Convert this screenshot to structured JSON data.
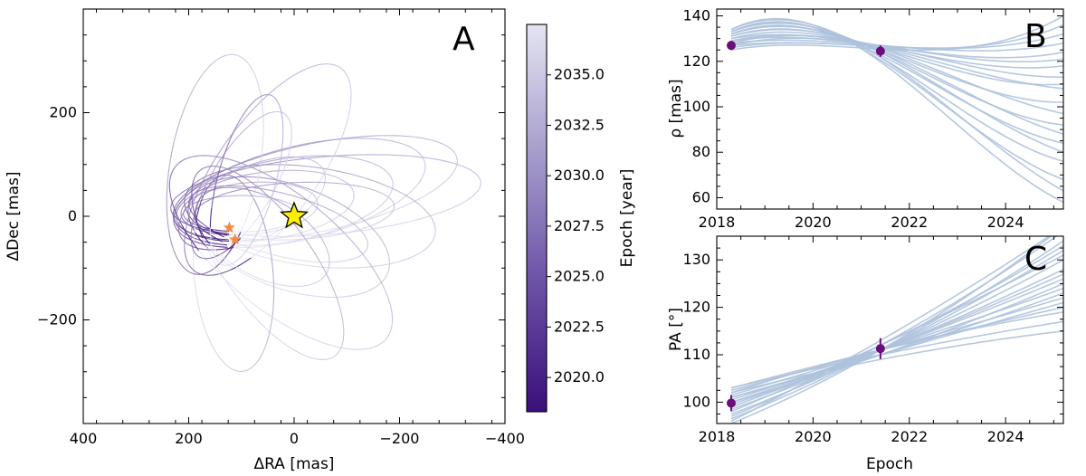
{
  "chart_data": [
    {
      "panel": "A",
      "type": "scatter",
      "xlabel": "ΔRA [mas]",
      "ylabel": "ΔDec [mas]",
      "xlim": [
        400,
        -400
      ],
      "ylim": [
        -400,
        400
      ],
      "xticks": [
        "400",
        "200",
        "0",
        "−200",
        "−400"
      ],
      "yticks": [
        "−200",
        "0",
        "200"
      ],
      "xtick_values": [
        400,
        200,
        0,
        -200,
        -400
      ],
      "ytick_values": [
        -200,
        0,
        200
      ],
      "star": {
        "x": 0,
        "y": 0,
        "color": "#ffee00",
        "edge": "#000000"
      },
      "observations": [
        {
          "x": 123,
          "y": -22,
          "color": "#f58a3c"
        },
        {
          "x": 112,
          "y": -45,
          "color": "#f58a3c"
        }
      ],
      "orbits": [
        {
          "cx": 100,
          "cy": 5,
          "a": 110,
          "b": 35,
          "tilt": 0
        },
        {
          "cx": 85,
          "cy": 15,
          "a": 130,
          "b": 50,
          "tilt": -5
        },
        {
          "cx": 55,
          "cy": 20,
          "a": 170,
          "b": 65,
          "tilt": -8
        },
        {
          "cx": 20,
          "cy": 30,
          "a": 210,
          "b": 80,
          "tilt": -10
        },
        {
          "cx": -10,
          "cy": 45,
          "a": 245,
          "b": 90,
          "tilt": -14
        },
        {
          "cx": -40,
          "cy": 55,
          "a": 275,
          "b": 85,
          "tilt": -12
        },
        {
          "cx": -60,
          "cy": 40,
          "a": 295,
          "b": 75,
          "tilt": -5
        },
        {
          "cx": -30,
          "cy": 0,
          "a": 240,
          "b": 95,
          "tilt": 8
        },
        {
          "cx": 10,
          "cy": -40,
          "a": 200,
          "b": 100,
          "tilt": 20
        },
        {
          "cx": 50,
          "cy": -90,
          "a": 220,
          "b": 85,
          "tilt": 55
        },
        {
          "cx": 115,
          "cy": -110,
          "a": 190,
          "b": 75,
          "tilt": 85
        },
        {
          "cx": 150,
          "cy": 100,
          "a": 215,
          "b": 85,
          "tilt": 100
        },
        {
          "cx": 50,
          "cy": 90,
          "a": 240,
          "b": 95,
          "tilt": 125
        },
        {
          "cx": 25,
          "cy": -70,
          "a": 260,
          "b": 110,
          "tilt": 40
        },
        {
          "cx": 100,
          "cy": 60,
          "a": 160,
          "b": 60,
          "tilt": -60
        },
        {
          "cx": 80,
          "cy": 25,
          "a": 150,
          "b": 70,
          "tilt": -25
        },
        {
          "cx": 30,
          "cy": -15,
          "a": 175,
          "b": 60,
          "tilt": 15
        },
        {
          "cx": 0,
          "cy": 10,
          "a": 190,
          "b": 55,
          "tilt": -3
        },
        {
          "cx": 60,
          "cy": -40,
          "a": 140,
          "b": 75,
          "tilt": 30
        },
        {
          "cx": 90,
          "cy": 70,
          "a": 170,
          "b": 55,
          "tilt": -75
        }
      ]
    },
    {
      "panel": "colorbar",
      "type": "heatmap",
      "label": "Epoch [year]",
      "range": [
        2018.3,
        2037.5
      ],
      "ticks": [
        "2020.0",
        "2022.5",
        "2025.0",
        "2027.5",
        "2030.0",
        "2032.5",
        "2035.0"
      ],
      "tick_values": [
        2020.0,
        2022.5,
        2025.0,
        2027.5,
        2030.0,
        2032.5,
        2035.0
      ],
      "color_low": "#3a0f7a",
      "color_high": "#e4e4f2"
    },
    {
      "panel": "B",
      "type": "line",
      "xlabel": "",
      "ylabel": "ρ [mas]",
      "xlim": [
        2018,
        2025.2
      ],
      "ylim": [
        55,
        143
      ],
      "xticks": [
        "2018",
        "2020",
        "2022",
        "2024"
      ],
      "xtick_values": [
        2018,
        2020,
        2022,
        2024
      ],
      "yticks": [
        "60",
        "80",
        "100",
        "120",
        "140"
      ],
      "ytick_values": [
        60,
        80,
        100,
        120,
        140
      ],
      "tracks": [
        [
          2018.3,
          125,
          2020,
          127,
          2022,
          125,
          2025.2,
          140
        ],
        [
          2018.3,
          126,
          2020,
          128,
          2022,
          126,
          2025.2,
          136
        ],
        [
          2018.3,
          127,
          2020,
          128,
          2022,
          126,
          2025.2,
          132
        ],
        [
          2018.3,
          128,
          2020,
          129,
          2022,
          126,
          2025.2,
          128
        ],
        [
          2018.3,
          129,
          2020,
          130,
          2022,
          125,
          2025.2,
          124
        ],
        [
          2018.3,
          130,
          2020,
          131,
          2022,
          124,
          2025.2,
          118
        ],
        [
          2018.3,
          130,
          2020,
          132,
          2022,
          122,
          2025.2,
          110
        ],
        [
          2018.3,
          131,
          2020,
          133,
          2022,
          120,
          2025.2,
          102
        ],
        [
          2018.3,
          132,
          2020,
          134,
          2022,
          118,
          2025.2,
          92
        ],
        [
          2018.3,
          132,
          2020,
          134,
          2022,
          116,
          2025.2,
          84
        ],
        [
          2018.3,
          133,
          2020,
          135,
          2022,
          114,
          2025.2,
          76
        ],
        [
          2018.3,
          133,
          2020,
          135,
          2022,
          112,
          2025.2,
          68
        ],
        [
          2018.3,
          134,
          2020,
          136,
          2022,
          110,
          2025.2,
          58
        ],
        [
          2018.3,
          128,
          2020,
          131,
          2022,
          124,
          2025.2,
          113
        ],
        [
          2018.3,
          127,
          2020,
          130,
          2022,
          125,
          2025.2,
          121
        ],
        [
          2018.3,
          131,
          2020,
          133,
          2022,
          121,
          2025.2,
          97
        ],
        [
          2018.3,
          132,
          2020,
          134,
          2022,
          119,
          2025.2,
          88
        ],
        [
          2018.3,
          133,
          2020,
          135,
          2022,
          117,
          2025.2,
          80
        ],
        [
          2018.3,
          134,
          2020,
          136,
          2022,
          113,
          2025.2,
          63
        ],
        [
          2018.3,
          129,
          2020,
          131,
          2022,
          123,
          2025.2,
          108
        ]
      ],
      "points": [
        {
          "x": 2018.3,
          "y": 127,
          "err": 2,
          "color": "#6a0f7a"
        },
        {
          "x": 2021.4,
          "y": 124.5,
          "err": 2.5,
          "color": "#6a0f7a"
        }
      ]
    },
    {
      "panel": "C",
      "type": "line",
      "xlabel": "Epoch",
      "ylabel": "PA [°]",
      "xlim": [
        2018,
        2025.2
      ],
      "ylim": [
        95.5,
        135
      ],
      "xticks": [
        "2018",
        "2020",
        "2022",
        "2024"
      ],
      "xtick_values": [
        2018,
        2020,
        2022,
        2024
      ],
      "yticks": [
        "100",
        "110",
        "120",
        "130"
      ],
      "ytick_values": [
        100,
        110,
        120,
        130
      ],
      "tracks": [
        [
          2018.3,
          95.5,
          2021.4,
          111,
          2025.2,
          137
        ],
        [
          2018.3,
          96.5,
          2021.4,
          111,
          2025.2,
          134
        ],
        [
          2018.3,
          97.5,
          2021.4,
          111,
          2025.2,
          132
        ],
        [
          2018.3,
          98.5,
          2021.4,
          111,
          2025.2,
          130
        ],
        [
          2018.3,
          99.5,
          2021.4,
          111,
          2025.2,
          128
        ],
        [
          2018.3,
          100.5,
          2021.4,
          111,
          2025.2,
          126
        ],
        [
          2018.3,
          101.5,
          2021.4,
          111,
          2025.2,
          124
        ],
        [
          2018.3,
          102.5,
          2021.4,
          111,
          2025.2,
          122
        ],
        [
          2018.3,
          103,
          2021.4,
          111,
          2025.2,
          120
        ],
        [
          2018.3,
          103,
          2021.4,
          110,
          2025.2,
          117
        ],
        [
          2018.3,
          102,
          2021.4,
          109,
          2025.2,
          115
        ],
        [
          2018.3,
          97,
          2021.4,
          112,
          2025.2,
          136
        ],
        [
          2018.3,
          99,
          2021.4,
          112,
          2025.2,
          133
        ],
        [
          2018.3,
          100,
          2021.4,
          110,
          2025.2,
          125
        ],
        [
          2018.3,
          101,
          2021.4,
          110,
          2025.2,
          121
        ],
        [
          2018.3,
          98,
          2021.4,
          112,
          2025.2,
          131
        ],
        [
          2018.3,
          96,
          2021.4,
          113,
          2025.2,
          137
        ],
        [
          2018.3,
          102,
          2021.4,
          111,
          2025.2,
          119
        ],
        [
          2018.3,
          100,
          2021.4,
          111,
          2025.2,
          127
        ],
        [
          2018.3,
          101,
          2021.4,
          110,
          2025.2,
          123
        ]
      ],
      "points": [
        {
          "x": 2018.3,
          "y": 99.8,
          "err": 1.7,
          "color": "#6a0f7a"
        },
        {
          "x": 2021.4,
          "y": 111.3,
          "err": 2.2,
          "color": "#6a0f7a"
        }
      ]
    }
  ],
  "labels": {
    "panel_a": "A",
    "panel_b": "B",
    "panel_c": "C",
    "a_xlabel": "ΔRA [mas]",
    "a_ylabel": "ΔDec [mas]",
    "cbar_label": "Epoch [year]",
    "b_ylabel": "ρ [mas]",
    "c_ylabel": "PA [°]",
    "c_xlabel": "Epoch"
  }
}
